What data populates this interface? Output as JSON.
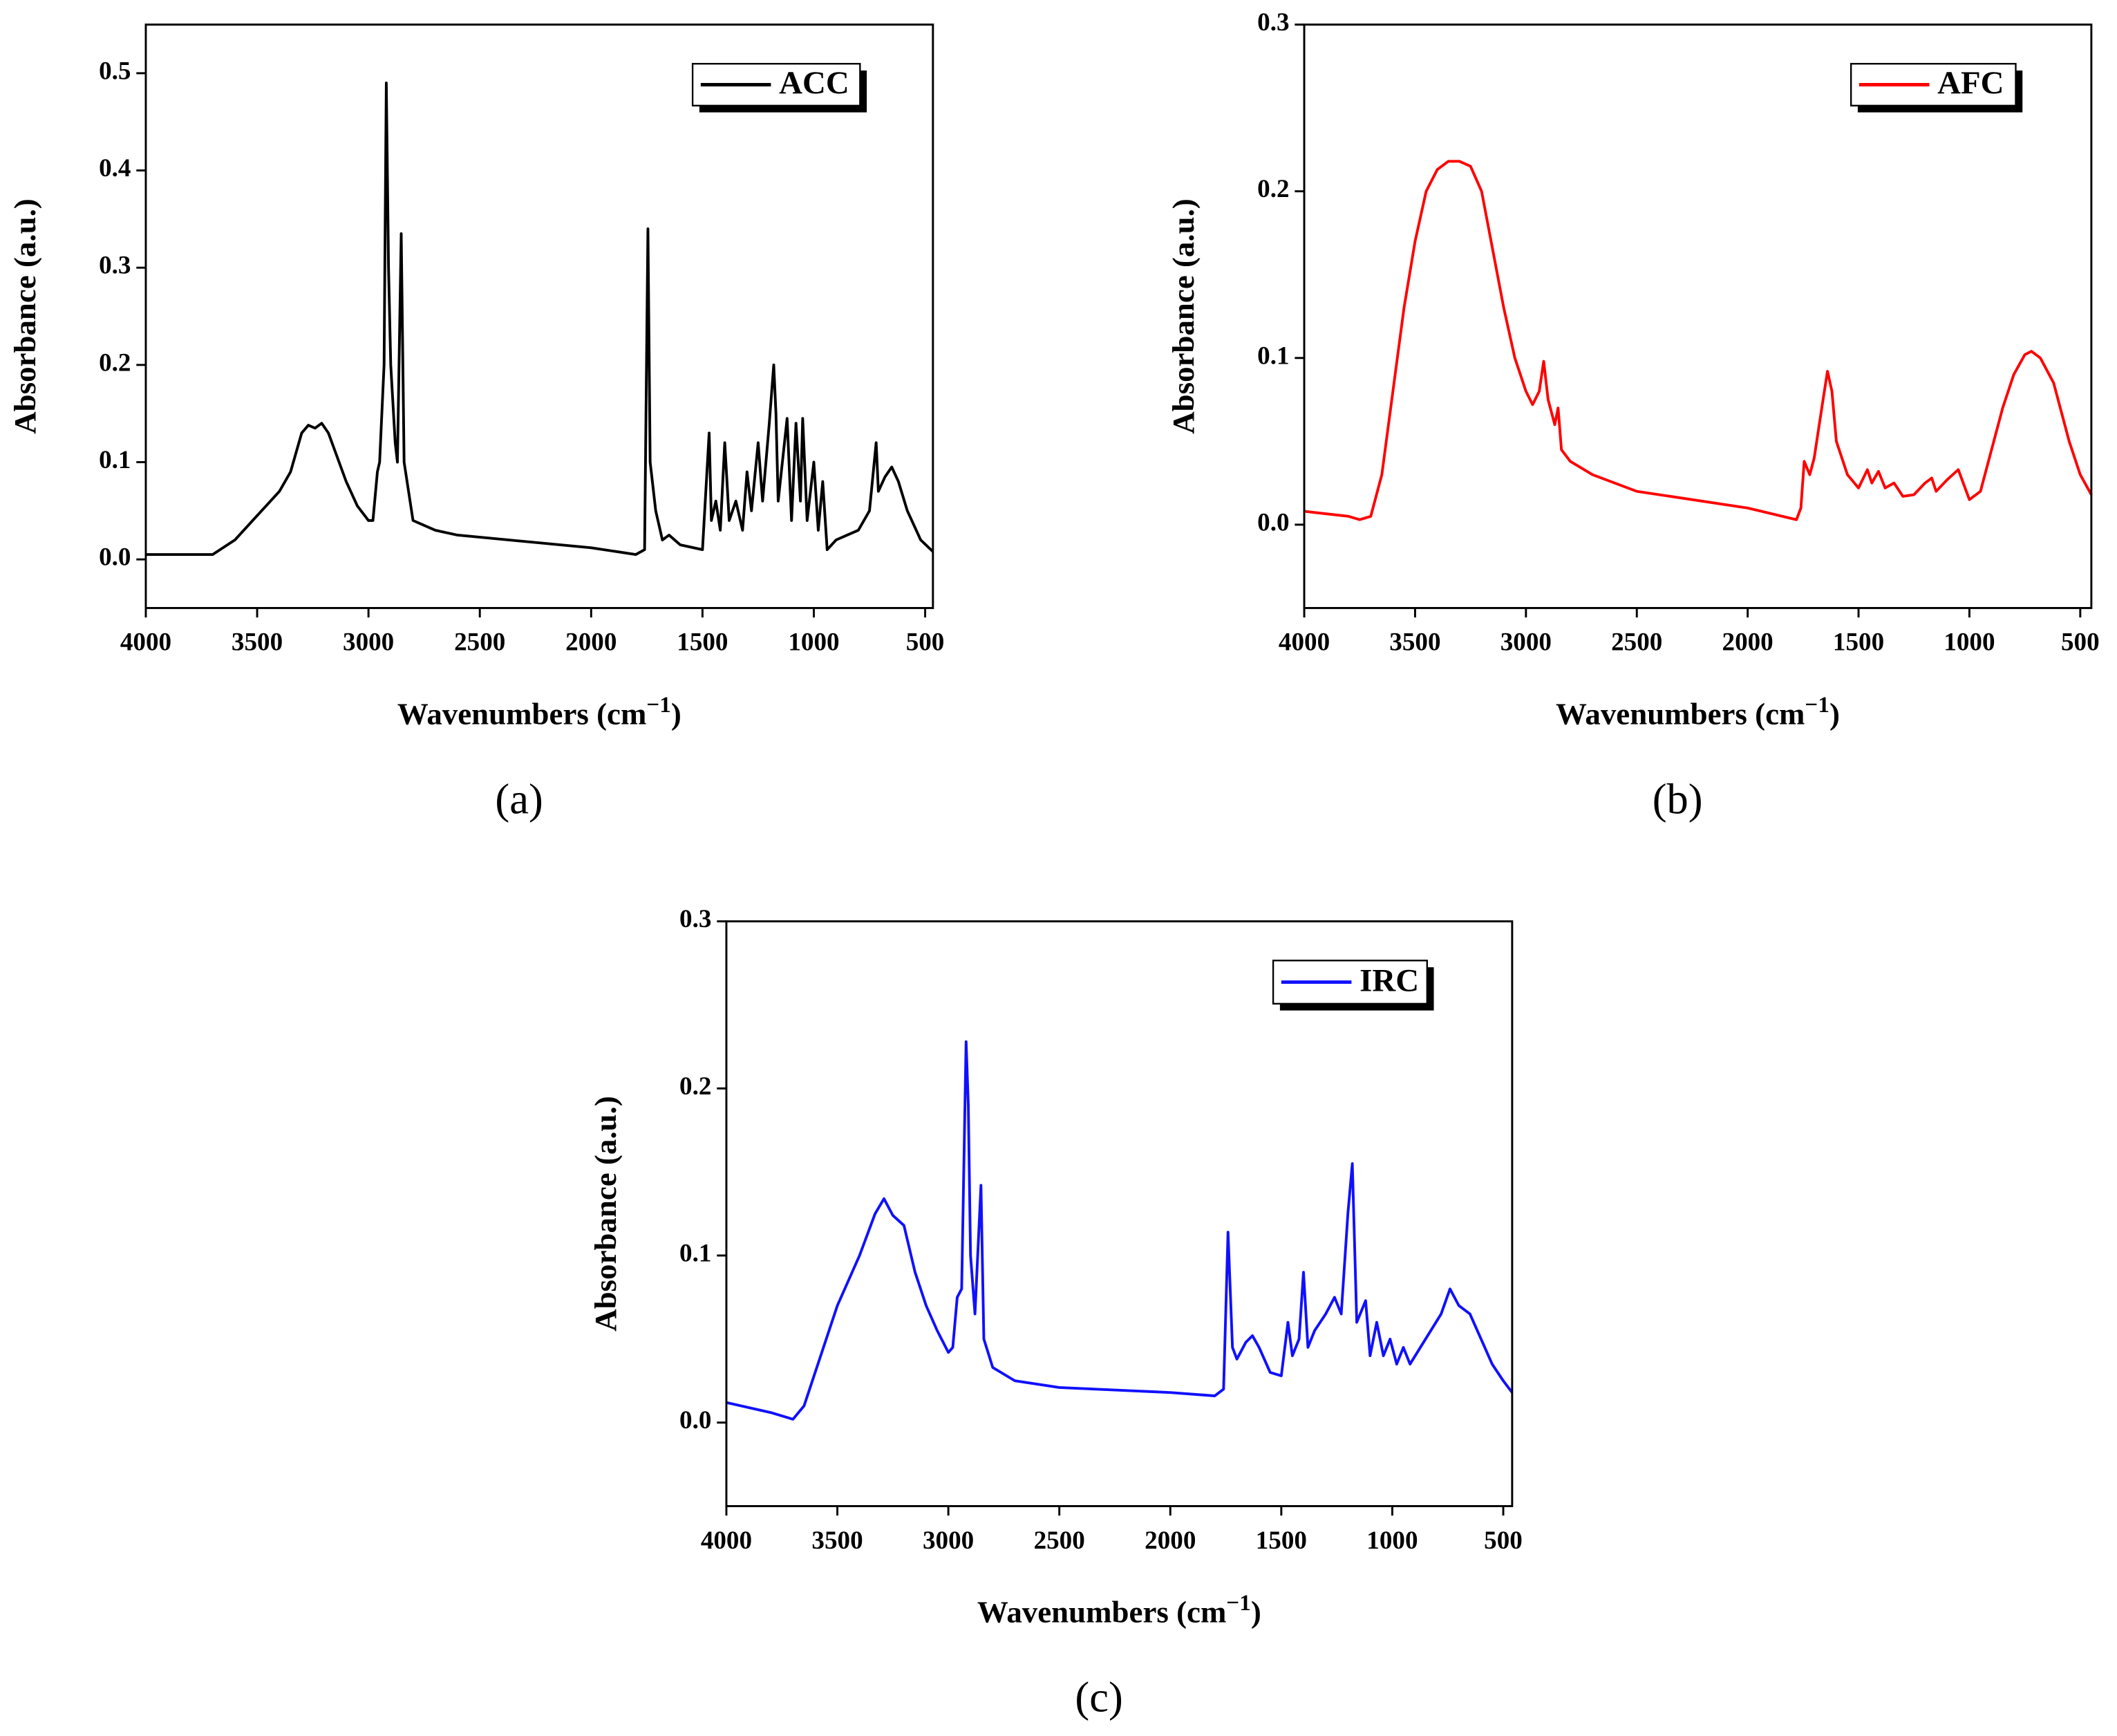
{
  "chart_data": [
    {
      "type": "line",
      "panel_label": "(a)",
      "xlabel": [
        "Wavenumbers (cm",
        "−1",
        ")"
      ],
      "ylabel": "Absorbance (a.u.)",
      "xlim": [
        4000,
        465
      ],
      "ylim": [
        -0.05,
        0.55
      ],
      "xticks": [
        4000,
        3500,
        3000,
        2500,
        2000,
        1500,
        1000,
        500
      ],
      "yticks": [
        {
          "value": 0,
          "label": "0.0"
        },
        0.1,
        0.2,
        0.3,
        0.4,
        0.5
      ],
      "x": [
        4000,
        3700,
        3600,
        3500,
        3400,
        3350,
        3300,
        3270,
        3240,
        3210,
        3180,
        3100,
        3050,
        3000,
        2980,
        2960,
        2950,
        2930,
        2920,
        2910,
        2900,
        2880,
        2870,
        2853,
        2840,
        2800,
        2700,
        2600,
        2000,
        1800,
        1760,
        1745,
        1735,
        1710,
        1680,
        1650,
        1600,
        1500,
        1470,
        1460,
        1440,
        1420,
        1400,
        1380,
        1350,
        1320,
        1300,
        1280,
        1250,
        1230,
        1200,
        1180,
        1170,
        1160,
        1120,
        1100,
        1080,
        1060,
        1050,
        1030,
        1000,
        980,
        960,
        940,
        900,
        850,
        800,
        750,
        720,
        710,
        680,
        650,
        620,
        580,
        520,
        465
      ],
      "series": [
        {
          "name": "ACC",
          "color": "#000000",
          "values": [
            0.005,
            0.005,
            0.02,
            0.045,
            0.07,
            0.09,
            0.13,
            0.138,
            0.135,
            0.14,
            0.13,
            0.08,
            0.055,
            0.04,
            0.04,
            0.09,
            0.1,
            0.2,
            0.49,
            0.3,
            0.2,
            0.12,
            0.1,
            0.335,
            0.1,
            0.04,
            0.03,
            0.025,
            0.012,
            0.005,
            0.01,
            0.34,
            0.1,
            0.05,
            0.02,
            0.025,
            0.015,
            0.01,
            0.13,
            0.04,
            0.06,
            0.03,
            0.12,
            0.04,
            0.06,
            0.03,
            0.09,
            0.05,
            0.12,
            0.06,
            0.14,
            0.2,
            0.15,
            0.06,
            0.145,
            0.04,
            0.14,
            0.06,
            0.145,
            0.04,
            0.1,
            0.03,
            0.08,
            0.01,
            0.02,
            0.025,
            0.03,
            0.05,
            0.12,
            0.07,
            0.085,
            0.095,
            0.08,
            0.05,
            0.02,
            0.008
          ]
        }
      ]
    },
    {
      "type": "line",
      "panel_label": "(b)",
      "xlabel": [
        "Wavenumbers (cm",
        "−1",
        ")"
      ],
      "ylabel": "Absorbance (a.u.)",
      "xlim": [
        4000,
        450
      ],
      "ylim": [
        -0.05,
        0.3
      ],
      "xticks": [
        4000,
        3500,
        3000,
        2500,
        2000,
        1500,
        1000,
        500
      ],
      "yticks": [
        {
          "value": 0,
          "label": "0.0"
        },
        0.1,
        0.2,
        0.3
      ],
      "x": [
        4000,
        3800,
        3750,
        3700,
        3650,
        3600,
        3550,
        3500,
        3450,
        3400,
        3350,
        3300,
        3250,
        3200,
        3150,
        3100,
        3050,
        3000,
        2970,
        2940,
        2920,
        2900,
        2870,
        2855,
        2840,
        2800,
        2700,
        2500,
        2000,
        1780,
        1760,
        1745,
        1720,
        1700,
        1660,
        1640,
        1620,
        1600,
        1550,
        1500,
        1460,
        1440,
        1410,
        1380,
        1340,
        1300,
        1250,
        1200,
        1170,
        1150,
        1100,
        1050,
        1000,
        950,
        900,
        850,
        800,
        750,
        720,
        680,
        620,
        550,
        500,
        450
      ],
      "series": [
        {
          "name": "AFC",
          "color": "#ff0000",
          "values": [
            0.008,
            0.005,
            0.003,
            0.005,
            0.03,
            0.08,
            0.13,
            0.17,
            0.2,
            0.213,
            0.218,
            0.218,
            0.215,
            0.2,
            0.165,
            0.13,
            0.1,
            0.08,
            0.072,
            0.08,
            0.098,
            0.075,
            0.06,
            0.07,
            0.045,
            0.038,
            0.03,
            0.02,
            0.01,
            0.003,
            0.01,
            0.038,
            0.03,
            0.04,
            0.075,
            0.092,
            0.08,
            0.05,
            0.03,
            0.022,
            0.033,
            0.025,
            0.032,
            0.022,
            0.025,
            0.017,
            0.018,
            0.025,
            0.028,
            0.02,
            0.027,
            0.033,
            0.015,
            0.02,
            0.045,
            0.07,
            0.09,
            0.102,
            0.104,
            0.1,
            0.085,
            0.05,
            0.03,
            0.018
          ]
        }
      ]
    },
    {
      "type": "line",
      "panel_label": "(c)",
      "xlabel": [
        "Wavenumbers (cm",
        "−1",
        ")"
      ],
      "ylabel": "Absorbance (a.u.)",
      "xlim": [
        4000,
        460
      ],
      "ylim": [
        -0.05,
        0.3
      ],
      "xticks": [
        4000,
        3500,
        3000,
        2500,
        2000,
        1500,
        1000,
        500
      ],
      "yticks": [
        {
          "value": 0,
          "label": "0.0"
        },
        0.1,
        0.2,
        0.3
      ],
      "x": [
        4000,
        3800,
        3700,
        3650,
        3600,
        3500,
        3400,
        3330,
        3290,
        3250,
        3200,
        3150,
        3100,
        3050,
        3000,
        2980,
        2960,
        2940,
        2920,
        2910,
        2900,
        2880,
        2853,
        2840,
        2800,
        2700,
        2500,
        2000,
        1800,
        1760,
        1740,
        1720,
        1700,
        1660,
        1630,
        1600,
        1550,
        1500,
        1470,
        1450,
        1420,
        1400,
        1380,
        1350,
        1300,
        1260,
        1230,
        1200,
        1180,
        1160,
        1120,
        1100,
        1070,
        1040,
        1010,
        980,
        950,
        920,
        850,
        780,
        740,
        700,
        650,
        600,
        550,
        500,
        460
      ],
      "series": [
        {
          "name": "IRC",
          "color": "#1010ff",
          "values": [
            0.012,
            0.006,
            0.002,
            0.01,
            0.03,
            0.07,
            0.1,
            0.125,
            0.134,
            0.124,
            0.118,
            0.09,
            0.07,
            0.055,
            0.042,
            0.045,
            0.075,
            0.08,
            0.228,
            0.19,
            0.1,
            0.065,
            0.142,
            0.05,
            0.033,
            0.025,
            0.021,
            0.018,
            0.016,
            0.02,
            0.114,
            0.045,
            0.038,
            0.048,
            0.052,
            0.045,
            0.03,
            0.028,
            0.06,
            0.04,
            0.05,
            0.09,
            0.045,
            0.055,
            0.065,
            0.075,
            0.065,
            0.125,
            0.155,
            0.06,
            0.073,
            0.04,
            0.06,
            0.04,
            0.05,
            0.035,
            0.045,
            0.035,
            0.05,
            0.065,
            0.08,
            0.07,
            0.065,
            0.05,
            0.035,
            0.025,
            0.018
          ]
        }
      ]
    }
  ]
}
